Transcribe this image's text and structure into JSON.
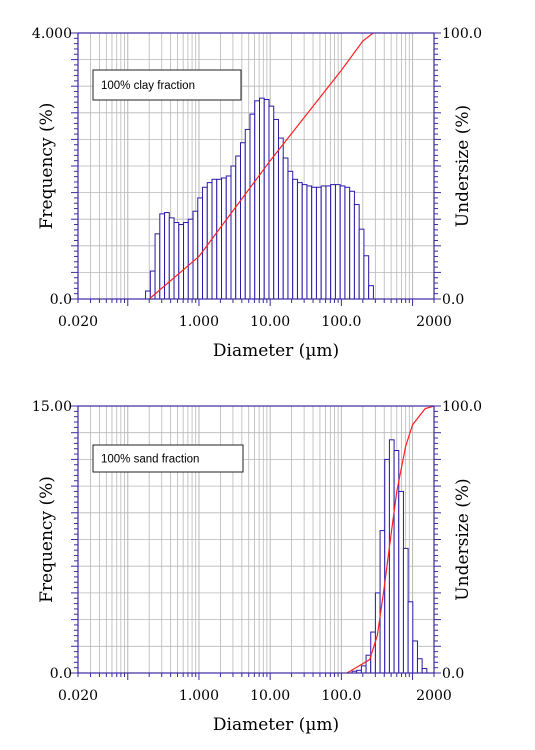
{
  "colors": {
    "bar_stroke": "#2a1aa8",
    "cdf_line": "#ff2020",
    "grid": "#b8b8b8",
    "axis": "#3b2aa0"
  },
  "chart_data": [
    {
      "type": "bar",
      "annotation": "100% clay fraction",
      "xlabel": "Diameter (µm)",
      "ylabel_left": "Frequency (%)",
      "ylabel_right": "Undersize (%)",
      "x_scale": "log",
      "xlim": [
        0.02,
        2000
      ],
      "ylim_left": [
        0,
        4
      ],
      "ylim_right": [
        0,
        100
      ],
      "x_ticks": [
        "0.020",
        "1.000",
        "10.00",
        "100.0",
        "2000"
      ],
      "y_ticks_left": [
        "0.0",
        "4.000"
      ],
      "y_ticks_right": [
        "0.0",
        "100.0"
      ],
      "bar_log_range": [
        -0.75,
        2.45
      ],
      "bar_count": 48,
      "frequency": [
        0.12,
        0.42,
        0.98,
        1.28,
        1.3,
        1.22,
        1.15,
        1.12,
        1.15,
        1.2,
        1.32,
        1.52,
        1.68,
        1.75,
        1.8,
        1.8,
        1.82,
        1.85,
        2.0,
        2.15,
        2.35,
        2.55,
        2.78,
        2.98,
        3.02,
        3.0,
        2.9,
        2.7,
        2.42,
        2.12,
        1.92,
        1.8,
        1.75,
        1.72,
        1.7,
        1.68,
        1.68,
        1.7,
        1.7,
        1.72,
        1.72,
        1.7,
        1.68,
        1.62,
        1.42,
        1.05,
        0.65,
        0.2
      ],
      "undersize": {
        "x": [
          0.2,
          1,
          10,
          100,
          200,
          280
        ],
        "y": [
          0,
          16,
          52,
          86,
          97,
          100
        ]
      }
    },
    {
      "type": "bar",
      "annotation": "100% sand fraction",
      "xlabel": "Diameter (µm)",
      "ylabel_left": "Frequency (%)",
      "ylabel_right": "Undersize (%)",
      "x_scale": "log",
      "xlim": [
        0.02,
        2000
      ],
      "ylim_left": [
        0,
        15
      ],
      "ylim_right": [
        0,
        100
      ],
      "x_ticks": [
        "0.020",
        "1.000",
        "10.00",
        "100.0",
        "2000"
      ],
      "y_ticks_left": [
        "0.0",
        "15.00"
      ],
      "y_ticks_right": [
        "0.0",
        "100.0"
      ],
      "bar_log_range": [
        2.15,
        3.2
      ],
      "bar_count": 16,
      "frequency": [
        0.1,
        0.15,
        0.4,
        1.0,
        2.3,
        4.5,
        8.0,
        12.0,
        13.1,
        12.5,
        10.2,
        7.0,
        4.0,
        1.8,
        0.8,
        0.25
      ],
      "undersize": {
        "x": [
          120,
          250,
          320,
          400,
          500,
          600,
          800,
          1000,
          1500,
          2000
        ],
        "y": [
          0,
          5,
          14,
          32,
          52,
          68,
          85,
          93,
          99,
          100
        ]
      }
    }
  ]
}
